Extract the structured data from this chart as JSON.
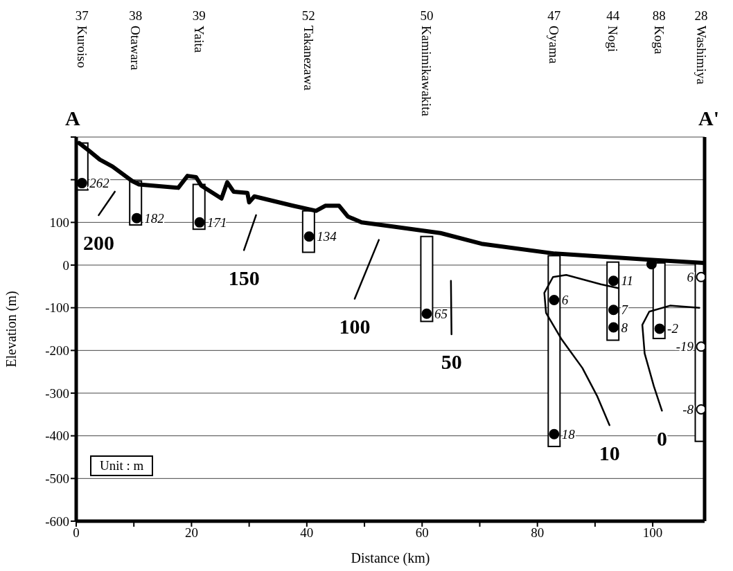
{
  "chart_data": {
    "type": "line",
    "xlabel": "Distance (km)",
    "ylabel": "Elevation (m)",
    "xlim": [
      0,
      109
    ],
    "xticks": [
      0,
      {
        "value": 10,
        "label": null
      },
      20,
      {
        "value": 30,
        "label": null
      },
      40,
      {
        "value": 50,
        "label": null
      },
      60,
      {
        "value": 70,
        "label": null
      },
      80,
      {
        "value": 90,
        "label": null
      },
      100
    ],
    "ylim": [
      -600,
      300
    ],
    "yticks": [
      -600,
      -500,
      -400,
      -300,
      -200,
      -100,
      0,
      100,
      {
        "value": 200,
        "label": null
      },
      {
        "value": 300,
        "label": null
      }
    ],
    "grid": "y",
    "series": [
      {
        "color": "#000000",
        "marker": "none",
        "x": [
          0.5,
          2.2,
          4.1,
          6.3,
          9.7,
          10.9,
          17.7,
          19.3,
          20.8,
          21.7,
          25.2,
          26.2,
          27.3,
          29.7,
          30,
          30.9,
          37.6,
          41.6,
          43.2,
          45.6,
          47.1,
          49.5,
          55.1,
          63.2,
          70.3,
          83,
          99,
          109
        ],
        "values": [
          286,
          268,
          247,
          231,
          197,
          189,
          181,
          209,
          206,
          186,
          156,
          194,
          172,
          169,
          147,
          161,
          139,
          127,
          139,
          139,
          114,
          100,
          90,
          75,
          50,
          27,
          13,
          5
        ]
      },
      {
        "type": "bar",
        "color": "#ffffff",
        "x": [
          1.0,
          10.3,
          21.3,
          40.3,
          60.8,
          82.9,
          93.1,
          101.1,
          108.4
        ],
        "base": [
          176,
          94,
          84,
          30,
          -132,
          -425,
          -176,
          -172,
          -413
        ],
        "values": [
          110,
          103,
          105,
          97,
          199,
          447,
          183,
          177,
          418
        ]
      },
      {
        "type": "scatter",
        "color": "#000000",
        "marker": "circle",
        "x": [
          1.0,
          10.5,
          21.4,
          40.4,
          60.8,
          82.9,
          82.9,
          93.2,
          93.2,
          93.2,
          101.2,
          99.8
        ],
        "values": [
          192,
          110,
          100,
          67,
          -114,
          -82,
          -396,
          -37,
          -105,
          -146,
          -149,
          2
        ]
      },
      {
        "type": "scatter",
        "color": "#ffffff",
        "marker": "circle",
        "x": [
          108.4,
          108.4,
          108.4
        ],
        "values": [
          -28,
          -191,
          -338
        ]
      },
      {
        "name": "200",
        "color": "#000000",
        "marker": "none",
        "x": [
          6.7,
          3.9
        ],
        "values": [
          172,
          117
        ]
      },
      {
        "name": "150",
        "color": "#000000",
        "marker": "none",
        "x": [
          31.2,
          29.1
        ],
        "values": [
          117,
          35
        ]
      },
      {
        "name": "100",
        "color": "#000000",
        "marker": "none",
        "x": [
          52.5,
          48.3
        ],
        "values": [
          59,
          -79
        ]
      },
      {
        "name": "50",
        "color": "#000000",
        "marker": "none",
        "x": [
          65,
          65.1
        ],
        "values": [
          -37,
          -162
        ]
      },
      {
        "name": "10",
        "color": "#000000",
        "marker": "none",
        "x": [
          94,
          91,
          85,
          82.7,
          81.2,
          81.5,
          84.2,
          87.8,
          90.4,
          92.5
        ],
        "values": [
          -54,
          -45,
          -23,
          -28,
          -65,
          -112,
          -174,
          -241,
          -308,
          -375
        ]
      },
      {
        "name": "0",
        "color": "#000000",
        "marker": "none",
        "x": [
          108.1,
          103,
          99.4,
          98.2,
          98.6,
          100.2,
          101.6
        ],
        "values": [
          -100,
          -95,
          -109,
          -140,
          -207,
          -284,
          -341
        ]
      }
    ],
    "annotations": [
      "37 Kuroiso",
      "38 Otawara",
      "39 Yaita",
      "52 Takanezawa",
      "50 Kamimikawakita",
      "47 Oyama",
      "44 Nogi",
      "88 Koga",
      "28 Washimiya",
      {
        "text": "262",
        "x": 1.0,
        "y": 192
      },
      {
        "text": "182",
        "x": 10.5,
        "y": 110
      },
      {
        "text": "171",
        "x": 21.4,
        "y": 100
      },
      {
        "text": "134",
        "x": 40.4,
        "y": 67
      },
      {
        "text": "65",
        "x": 60.8,
        "y": -114
      },
      {
        "text": "6",
        "x": 82.9,
        "y": -82
      },
      {
        "text": "18",
        "x": 82.9,
        "y": -396
      },
      {
        "text": "11",
        "x": 93.2,
        "y": -37
      },
      {
        "text": "7",
        "x": 93.2,
        "y": -105
      },
      {
        "text": "8",
        "x": 93.2,
        "y": -146
      },
      {
        "text": "-2",
        "x": 101.2,
        "y": -149
      },
      {
        "text": "6",
        "x": 108.4,
        "y": -28
      },
      {
        "text": "-19",
        "x": 108.4,
        "y": -191
      },
      {
        "text": "-8",
        "x": 108.4,
        "y": -338
      },
      "A",
      "A'",
      "Unit : m"
    ]
  }
}
